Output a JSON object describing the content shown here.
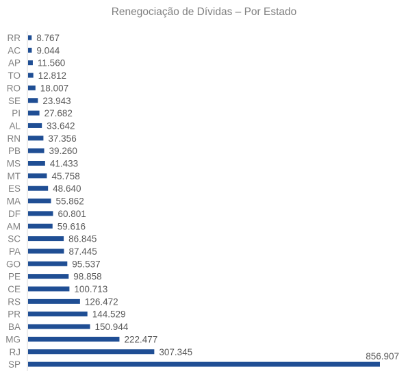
{
  "chart_data": {
    "type": "bar",
    "orientation": "horizontal",
    "title": "Renegociação de Dívidas – Por Estado",
    "xlabel": "",
    "ylabel": "",
    "color": "#1f4e94",
    "axis_color": "#d9d9d9",
    "grid": false,
    "legend": "none",
    "xlim": [
      0,
      856907
    ],
    "categories": [
      "RR",
      "AC",
      "AP",
      "TO",
      "RO",
      "SE",
      "PI",
      "AL",
      "RN",
      "PB",
      "MS",
      "MT",
      "ES",
      "MA",
      "DF",
      "AM",
      "SC",
      "PA",
      "GO",
      "PE",
      "CE",
      "RS",
      "PR",
      "BA",
      "MG",
      "RJ",
      "SP"
    ],
    "values": [
      8767,
      9044,
      11560,
      12812,
      18007,
      23943,
      27682,
      33642,
      37356,
      39260,
      41433,
      45758,
      48640,
      55862,
      60801,
      59616,
      86845,
      87445,
      95537,
      98858,
      100713,
      126472,
      144529,
      150944,
      222477,
      307345,
      856907
    ],
    "data_labels": [
      "8.767",
      "9.044",
      "11.560",
      "12.812",
      "18.007",
      "23.943",
      "27.682",
      "33.642",
      "37.356",
      "39.260",
      "41.433",
      "45.758",
      "48.640",
      "55.862",
      "60.801",
      "59.616",
      "86.845",
      "87.445",
      "95.537",
      "98.858",
      "100.713",
      "126.472",
      "144.529",
      "150.944",
      "222.477",
      "307.345",
      "856.907"
    ]
  }
}
